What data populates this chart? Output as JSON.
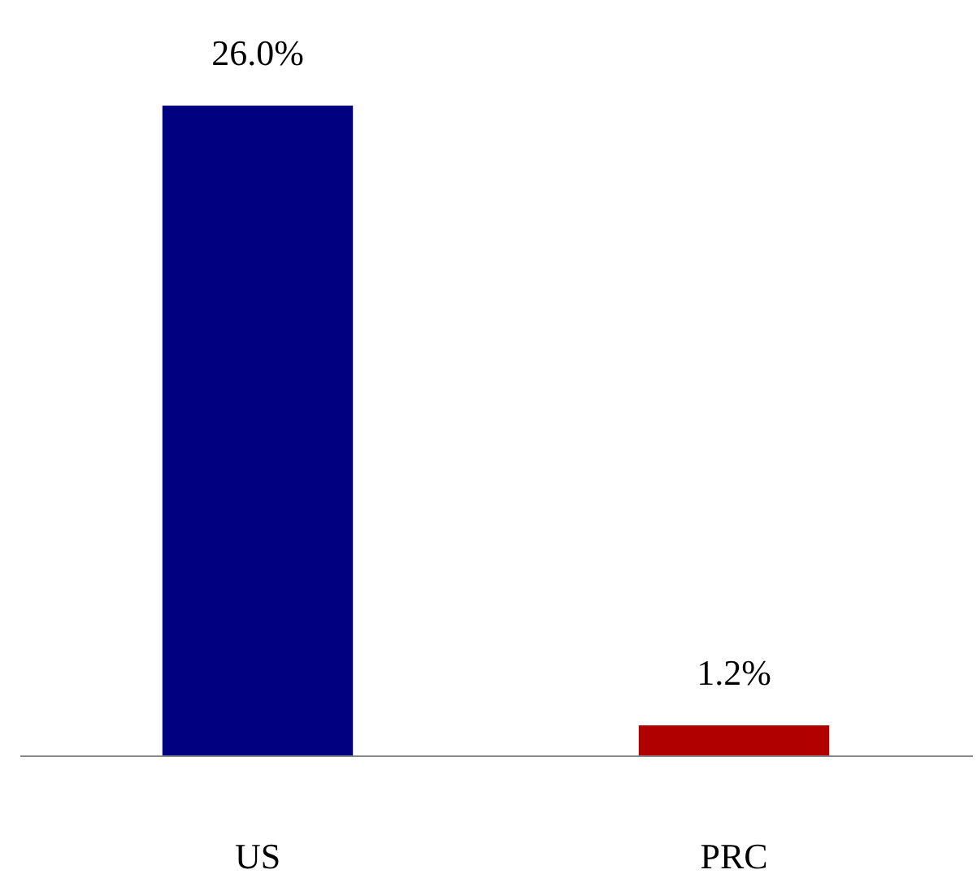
{
  "chart_data": {
    "type": "bar",
    "categories": [
      "US",
      "PRC"
    ],
    "values": [
      26.0,
      1.2
    ],
    "value_labels": [
      "26.0%",
      "1.2%"
    ],
    "colors": [
      "#000080",
      "#b00000"
    ]
  }
}
